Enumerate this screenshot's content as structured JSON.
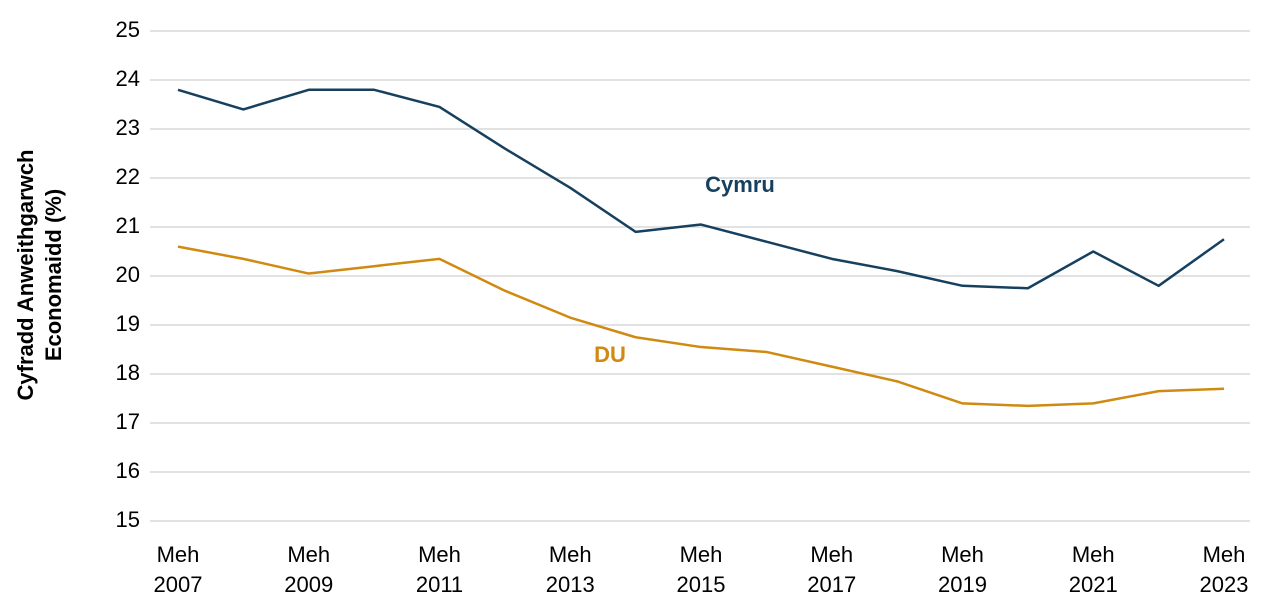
{
  "chart_data": {
    "type": "line",
    "y_label": "Cyfradd Anweithgarwch Economaidd (%)",
    "categories": [
      "Meh 2007",
      null,
      "Meh 2009",
      null,
      "Meh 2011",
      null,
      "Meh 2013",
      null,
      "Meh 2015",
      null,
      "Meh 2017",
      null,
      "Meh 2019",
      null,
      "Meh 2021",
      null,
      "Meh 2023"
    ],
    "series": [
      {
        "name": "Cymru",
        "color": "#17405f",
        "values": [
          23.8,
          23.4,
          23.8,
          23.8,
          23.45,
          22.6,
          21.8,
          20.9,
          21.05,
          20.7,
          20.35,
          20.1,
          19.8,
          19.75,
          20.5,
          19.8,
          20.75
        ]
      },
      {
        "name": "DU",
        "color": "#d08a12",
        "values": [
          20.6,
          20.35,
          20.05,
          20.2,
          20.35,
          19.7,
          19.15,
          18.75,
          18.55,
          18.45,
          18.15,
          17.85,
          17.4,
          17.35,
          17.4,
          17.65,
          17.7
        ]
      }
    ],
    "ylim": [
      15,
      25
    ],
    "yticks": [
      15,
      16,
      17,
      18,
      19,
      20,
      21,
      22,
      23,
      24,
      25
    ],
    "grid": true
  }
}
